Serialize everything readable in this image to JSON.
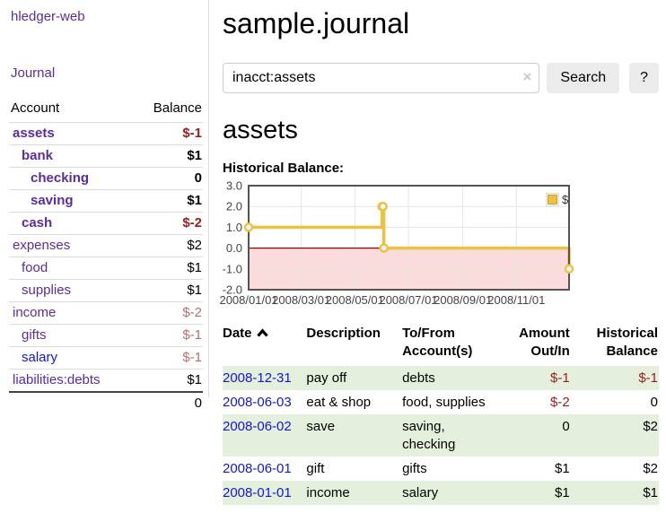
{
  "sidebar": {
    "app_title": "hledger-web",
    "journal_link": "Journal",
    "accounts_table": {
      "account_header": "Account",
      "balance_header": "Balance",
      "rows": [
        {
          "name": "assets",
          "indent": 0,
          "bold": true,
          "link_color": "purple",
          "balance": "$-1"
        },
        {
          "name": "bank",
          "indent": 1,
          "bold": true,
          "link_color": "purple",
          "balance": "$1"
        },
        {
          "name": "checking",
          "indent": 2,
          "bold": true,
          "link_color": "purple",
          "balance": "0"
        },
        {
          "name": "saving",
          "indent": 2,
          "bold": true,
          "link_color": "purple",
          "balance": "$1"
        },
        {
          "name": "cash",
          "indent": 1,
          "bold": true,
          "link_color": "purple",
          "balance": "$-2"
        },
        {
          "name": "expenses",
          "indent": 0,
          "bold": false,
          "link_color": "purple",
          "balance": "$2"
        },
        {
          "name": "food",
          "indent": 1,
          "bold": false,
          "link_color": "purple",
          "balance": "$1"
        },
        {
          "name": "supplies",
          "indent": 1,
          "bold": false,
          "link_color": "purple",
          "balance": "$1"
        },
        {
          "name": "income",
          "indent": 0,
          "bold": false,
          "link_color": "purple",
          "balance": "$-2"
        },
        {
          "name": "gifts",
          "indent": 1,
          "bold": false,
          "link_color": "purple",
          "balance": "$-1"
        },
        {
          "name": "salary",
          "indent": 1,
          "bold": false,
          "link_color": "blue",
          "balance": "$-1"
        },
        {
          "name": "liabilities:debts",
          "indent": 0,
          "bold": false,
          "link_color": "purple",
          "balance": "$1"
        }
      ],
      "total": "0"
    }
  },
  "header": {
    "title": "sample.journal"
  },
  "search": {
    "value": "inacct:assets",
    "clear_icon": "×",
    "button_label": "Search",
    "help_label": "?"
  },
  "account_page": {
    "heading": "assets",
    "chart_label": "Historical Balance:"
  },
  "chart_data": {
    "type": "line",
    "step": true,
    "title": "Historical Balance",
    "series": [
      {
        "name": "$",
        "color": "#edc240",
        "points": [
          [
            "2008-01-01",
            1
          ],
          [
            "2008-06-01",
            2
          ],
          [
            "2008-06-02",
            2
          ],
          [
            "2008-06-03",
            0
          ],
          [
            "2008-12-31",
            -1
          ]
        ]
      }
    ],
    "x_domain": [
      "2008-01-01",
      "2008-12-31"
    ],
    "ylim": [
      -2,
      3
    ],
    "x_ticks": [
      "2008/01/01",
      "2008/03/01",
      "2008/05/01",
      "2008/07/01",
      "2008/09/01",
      "2008/11/01"
    ],
    "y_ticks": [
      "3.0",
      "2.0",
      "1.0",
      "0.0",
      "-1.0",
      "-2.0"
    ],
    "grid": true,
    "legend_position": "top-right",
    "legend": {
      "label": "$",
      "swatch_color": "#edc240"
    },
    "negative_region_color": "#fbdcdc",
    "zero_line_color": "#990000",
    "grid_color": "#e6e6e6",
    "border_color": "#545454"
  },
  "register_table": {
    "columns": {
      "date": "Date",
      "description": "Description",
      "accounts": "To/From Account(s)",
      "amount": "Amount Out/In",
      "balance": "Historical Balance"
    },
    "sort": "date ascending",
    "rows": [
      {
        "date": "2008-12-31",
        "description": "pay off",
        "accounts": "debts",
        "amount": "$-1",
        "balance": "$-1",
        "shaded": true
      },
      {
        "date": "2008-06-03",
        "description": "eat & shop",
        "accounts": "food, supplies",
        "amount": "$-2",
        "balance": "0",
        "shaded": false
      },
      {
        "date": "2008-06-02",
        "description": "save",
        "accounts": "saving, checking",
        "amount": "0",
        "balance": "$2",
        "shaded": true
      },
      {
        "date": "2008-06-01",
        "description": "gift",
        "accounts": "gifts",
        "amount": "$1",
        "balance": "$2",
        "shaded": false
      },
      {
        "date": "2008-01-01",
        "description": "income",
        "accounts": "salary",
        "amount": "$1",
        "balance": "$1",
        "shaded": true
      }
    ]
  },
  "colors": {
    "link_purple": "#5a2ca0",
    "link_blue": "#1515d6",
    "date_link_blue": "#1515d6",
    "negative_strong": "#9b1b1e",
    "negative_light": "#bb6d6d",
    "row_stripe_green": "#e5f0dc",
    "chart_gold": "#edc240",
    "chart_negative_pink": "#fbdcdc",
    "zero_line_red": "#990000",
    "button_gray": "#ebebeb",
    "divider_gray": "#dddddd"
  }
}
